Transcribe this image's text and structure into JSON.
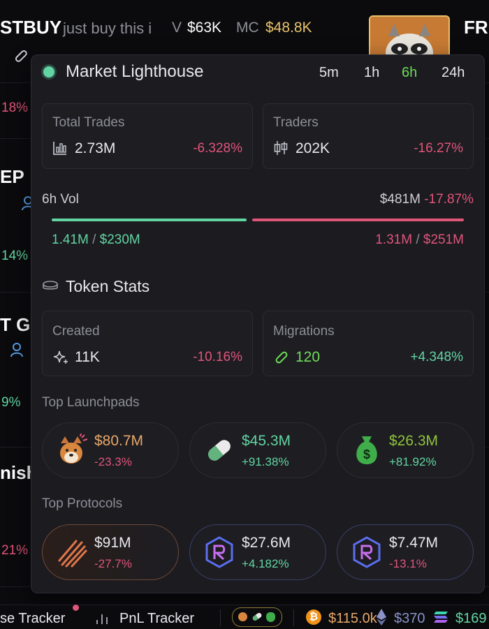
{
  "background": {
    "token_name": "STBUY",
    "token_desc": "just buy this i",
    "vol_label": "V",
    "vol_value": "$63K",
    "mc_label": "MC",
    "mc_value": "$48.8K",
    "right_title": "FR",
    "row_pcts": [
      "18%",
      "14%",
      "9%",
      "21%"
    ],
    "row_names": [
      "EP",
      "T Gr",
      "nish"
    ]
  },
  "popup": {
    "title": "Market Lighthouse",
    "timeframes": [
      "5m",
      "1h",
      "6h",
      "24h"
    ],
    "active_timeframe": "6h",
    "total_trades": {
      "label": "Total Trades",
      "value": "2.73M",
      "change": "-6.328%"
    },
    "traders": {
      "label": "Traders",
      "value": "202K",
      "change": "-16.27%"
    },
    "volume": {
      "label": "6h Vol",
      "total": "$481M",
      "change": "-17.87%",
      "buy_count": "1.41M",
      "buy_value": "$230M",
      "sell_count": "1.31M",
      "sell_value": "$251M",
      "buy_ratio": 0.48
    },
    "token_stats_title": "Token Stats",
    "created": {
      "label": "Created",
      "value": "11K",
      "change": "-10.16%"
    },
    "migrations": {
      "label": "Migrations",
      "value": "120",
      "change": "+4.348%"
    },
    "top_launchpads_title": "Top Launchpads",
    "launchpads": [
      {
        "amount": "$80.7M",
        "change": "-23.3%"
      },
      {
        "amount": "$45.3M",
        "change": "+91.38%"
      },
      {
        "amount": "$26.3M",
        "change": "+81.92%"
      }
    ],
    "top_protocols_title": "Top Protocols",
    "protocols": [
      {
        "amount": "$91M",
        "change": "-27.7%"
      },
      {
        "amount": "$27.6M",
        "change": "+4.182%"
      },
      {
        "amount": "$7.47M",
        "change": "-13.1%"
      }
    ]
  },
  "footer": {
    "tracker_label": "se Tracker",
    "pnl_label": "PnL Tracker",
    "btc_price": "$115.0k",
    "eth_price": "$370",
    "sol_price": "$169"
  },
  "colors": {
    "green": "#62d5a2",
    "red": "#e0557a",
    "gold": "#e8c36a",
    "accent_green": "#6fdc5a"
  }
}
